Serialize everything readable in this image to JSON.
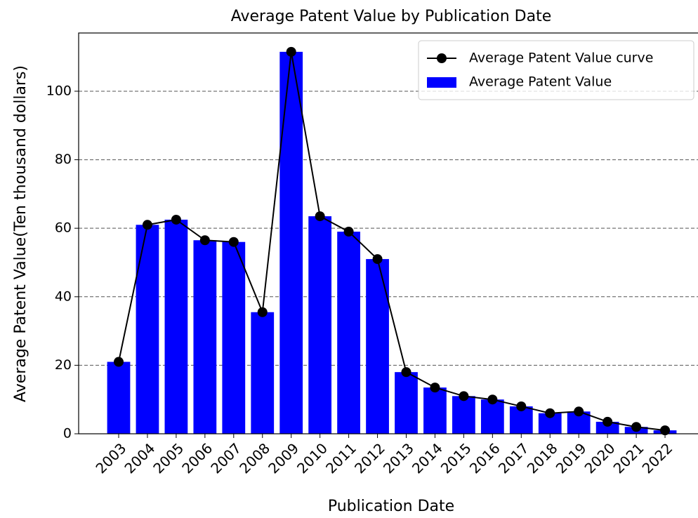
{
  "chart_data": {
    "type": "bar",
    "title": "Average Patent Value by Publication Date",
    "x_label": "Publication Date",
    "y_label": "Average Patent Value(Ten thousand dollars)",
    "categories": [
      "2003",
      "2004",
      "2005",
      "2006",
      "2007",
      "2008",
      "2009",
      "2010",
      "2011",
      "2012",
      "2013",
      "2014",
      "2015",
      "2016",
      "2017",
      "2018",
      "2019",
      "2020",
      "2021",
      "2022"
    ],
    "series": [
      {
        "name": "Average Patent Value curve",
        "type": "line",
        "color": "#000000",
        "values": [
          21,
          61,
          62.5,
          56.5,
          56,
          35.5,
          111.5,
          63.5,
          59,
          51,
          18,
          13.5,
          11,
          10,
          8,
          6,
          6.5,
          3.5,
          2,
          1
        ]
      },
      {
        "name": "Average Patent Value",
        "type": "bar",
        "color": "#0000ff",
        "values": [
          21,
          61,
          62.5,
          56.5,
          56,
          35.5,
          111.5,
          63.5,
          59,
          51,
          18,
          13.5,
          11,
          10,
          8,
          6,
          6.5,
          3.5,
          2,
          1
        ]
      }
    ],
    "ylim": [
      0,
      117
    ],
    "yticks": [
      0,
      20,
      40,
      60,
      80,
      100
    ],
    "grid": true,
    "legend": "upper right"
  }
}
